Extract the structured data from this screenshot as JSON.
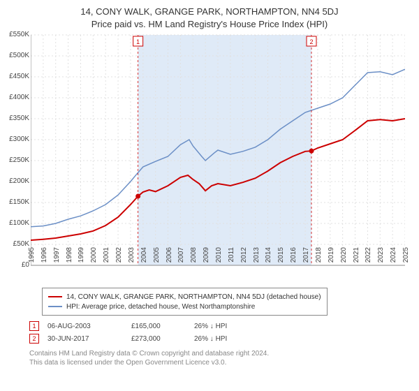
{
  "title_line1": "14, CONY WALK, GRANGE PARK, NORTHAMPTON, NN4 5DJ",
  "title_line2": "Price paid vs. HM Land Registry's House Price Index (HPI)",
  "chart": {
    "type": "line",
    "background_color": "#ffffff",
    "grid_color": "#e0e0e0",
    "grid_dash": "2,3",
    "x": {
      "min": 1995,
      "max": 2025,
      "tick_step": 1,
      "prefix": ""
    },
    "y": {
      "min": 0,
      "max": 550,
      "tick_step": 50,
      "prefix": "£",
      "suffix": "K"
    },
    "shaded_band": {
      "x_start": 2003.6,
      "x_end": 2017.5,
      "fill": "#dfeaf7"
    },
    "series": [
      {
        "name": "price_paid",
        "color": "#cc0000",
        "width": 2,
        "points": [
          [
            1995,
            60
          ],
          [
            1996,
            62
          ],
          [
            1997,
            65
          ],
          [
            1998,
            70
          ],
          [
            1999,
            75
          ],
          [
            2000,
            82
          ],
          [
            2001,
            95
          ],
          [
            2002,
            115
          ],
          [
            2003,
            145
          ],
          [
            2003.6,
            165
          ],
          [
            2004,
            175
          ],
          [
            2004.5,
            180
          ],
          [
            2005,
            176
          ],
          [
            2006,
            190
          ],
          [
            2007,
            210
          ],
          [
            2007.6,
            215
          ],
          [
            2008,
            205
          ],
          [
            2008.5,
            195
          ],
          [
            2009,
            178
          ],
          [
            2009.5,
            190
          ],
          [
            2010,
            195
          ],
          [
            2011,
            190
          ],
          [
            2012,
            198
          ],
          [
            2013,
            208
          ],
          [
            2014,
            225
          ],
          [
            2015,
            245
          ],
          [
            2016,
            260
          ],
          [
            2017,
            272
          ],
          [
            2017.5,
            273
          ],
          [
            2018,
            280
          ],
          [
            2019,
            290
          ],
          [
            2020,
            300
          ],
          [
            2021,
            322
          ],
          [
            2022,
            345
          ],
          [
            2023,
            348
          ],
          [
            2024,
            345
          ],
          [
            2025,
            350
          ]
        ]
      },
      {
        "name": "hpi",
        "color": "#6b8fc6",
        "width": 1.5,
        "points": [
          [
            1995,
            92
          ],
          [
            1996,
            94
          ],
          [
            1997,
            100
          ],
          [
            1998,
            110
          ],
          [
            1999,
            118
          ],
          [
            2000,
            130
          ],
          [
            2001,
            145
          ],
          [
            2002,
            168
          ],
          [
            2003,
            200
          ],
          [
            2003.5,
            218
          ],
          [
            2004,
            235
          ],
          [
            2005,
            248
          ],
          [
            2006,
            260
          ],
          [
            2007,
            288
          ],
          [
            2007.7,
            300
          ],
          [
            2008,
            285
          ],
          [
            2008.7,
            260
          ],
          [
            2009,
            250
          ],
          [
            2009.7,
            268
          ],
          [
            2010,
            275
          ],
          [
            2011,
            265
          ],
          [
            2012,
            272
          ],
          [
            2013,
            282
          ],
          [
            2014,
            300
          ],
          [
            2015,
            325
          ],
          [
            2016,
            345
          ],
          [
            2017,
            365
          ],
          [
            2018,
            375
          ],
          [
            2019,
            385
          ],
          [
            2020,
            400
          ],
          [
            2021,
            430
          ],
          [
            2022,
            460
          ],
          [
            2023,
            462
          ],
          [
            2024,
            455
          ],
          [
            2025,
            468
          ]
        ]
      }
    ],
    "markers": [
      {
        "num": "1",
        "x": 2003.6,
        "y": 165,
        "border": "#cc0000",
        "fill": "#ffffff",
        "text": "#cc0000"
      },
      {
        "num": "2",
        "x": 2017.5,
        "y": 273,
        "border": "#cc0000",
        "fill": "#ffffff",
        "text": "#cc0000"
      }
    ]
  },
  "legend": {
    "rows": [
      {
        "color": "#cc0000",
        "label": "14, CONY WALK, GRANGE PARK, NORTHAMPTON, NN4 5DJ (detached house)"
      },
      {
        "color": "#6b8fc6",
        "label": "HPI: Average price, detached house, West Northamptonshire"
      }
    ]
  },
  "footnotes": [
    {
      "num": "1",
      "date": "06-AUG-2003",
      "price": "£165,000",
      "delta": "26% ↓ HPI"
    },
    {
      "num": "2",
      "date": "30-JUN-2017",
      "price": "£273,000",
      "delta": "26% ↓ HPI"
    }
  ],
  "footer_line1": "Contains HM Land Registry data © Crown copyright and database right 2024.",
  "footer_line2": "This data is licensed under the Open Government Licence v3.0."
}
